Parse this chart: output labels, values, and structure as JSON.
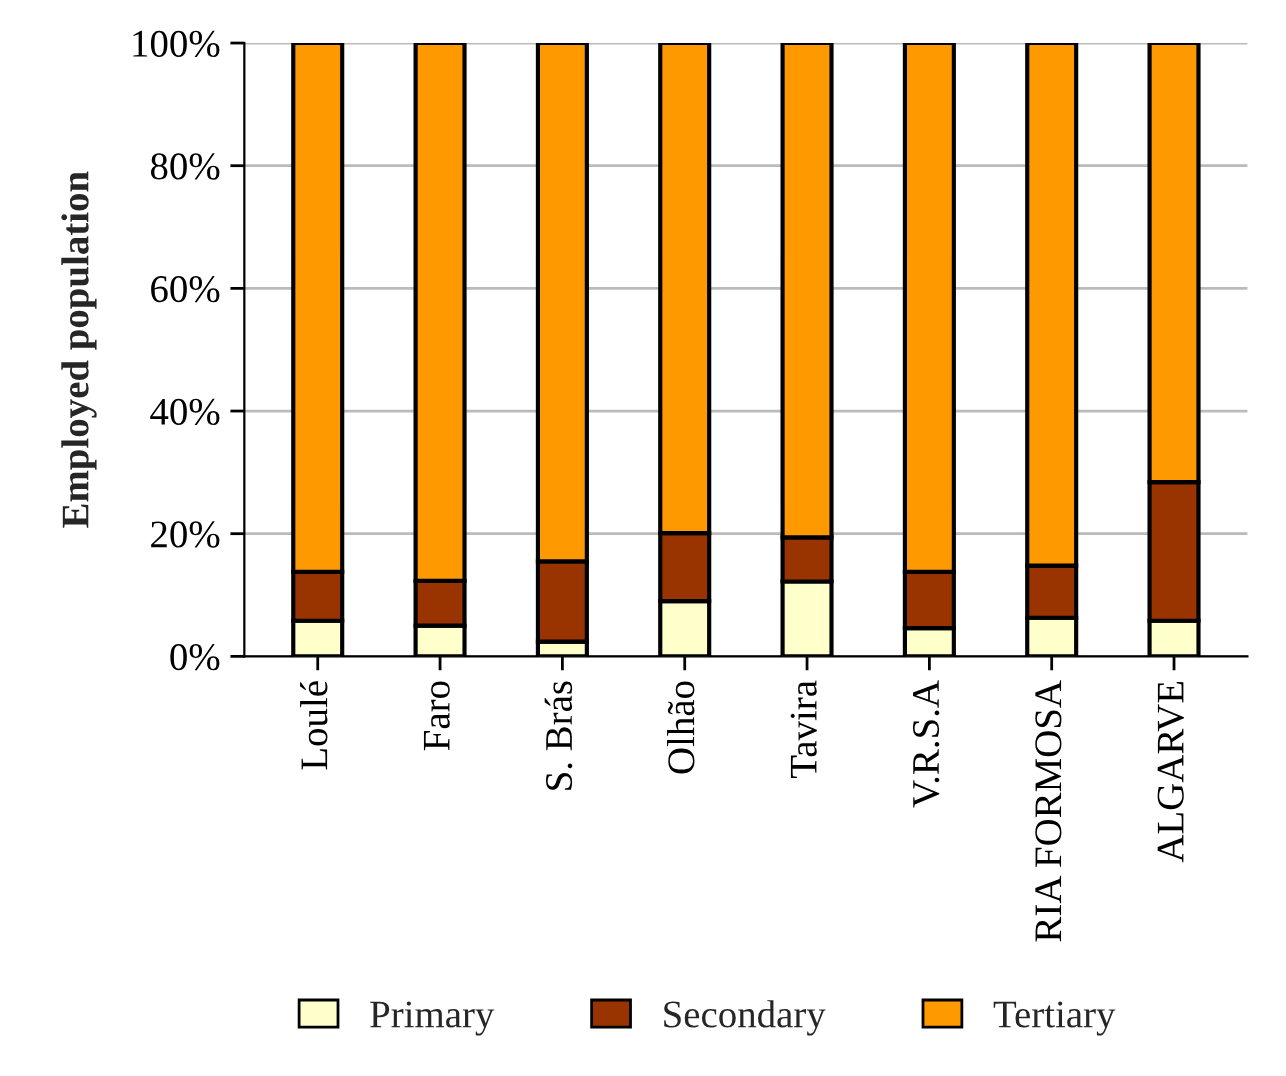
{
  "chart_data": {
    "type": "bar",
    "stacked": true,
    "ylabel": "Employed population",
    "categories": [
      "Loulé",
      "Faro",
      "S. Brás",
      "Olhão",
      "Tavira",
      "V.R.S.A",
      "RIA FORMOSA",
      "ALGARVE"
    ],
    "series": [
      {
        "name": "Primary",
        "color": "#ffffcc",
        "values": [
          5.8,
          5.0,
          2.4,
          9.0,
          12.2,
          4.6,
          6.3,
          5.8
        ]
      },
      {
        "name": "Secondary",
        "color": "#993300",
        "values": [
          8.0,
          7.3,
          13.1,
          11.1,
          7.2,
          9.2,
          8.5,
          22.6
        ]
      },
      {
        "name": "Tertiary",
        "color": "#ff9900",
        "values": [
          86.2,
          87.7,
          84.5,
          79.9,
          80.6,
          86.2,
          85.2,
          71.6
        ]
      }
    ],
    "ylim": [
      0,
      100
    ],
    "yticks": [
      {
        "value": 0,
        "label": "0%"
      },
      {
        "value": 20,
        "label": "20%"
      },
      {
        "value": 40,
        "label": "40%"
      },
      {
        "value": 60,
        "label": "60%"
      },
      {
        "value": 80,
        "label": "80%"
      },
      {
        "value": 100,
        "label": "100%"
      }
    ],
    "grid": "y",
    "legend": "bottom"
  }
}
